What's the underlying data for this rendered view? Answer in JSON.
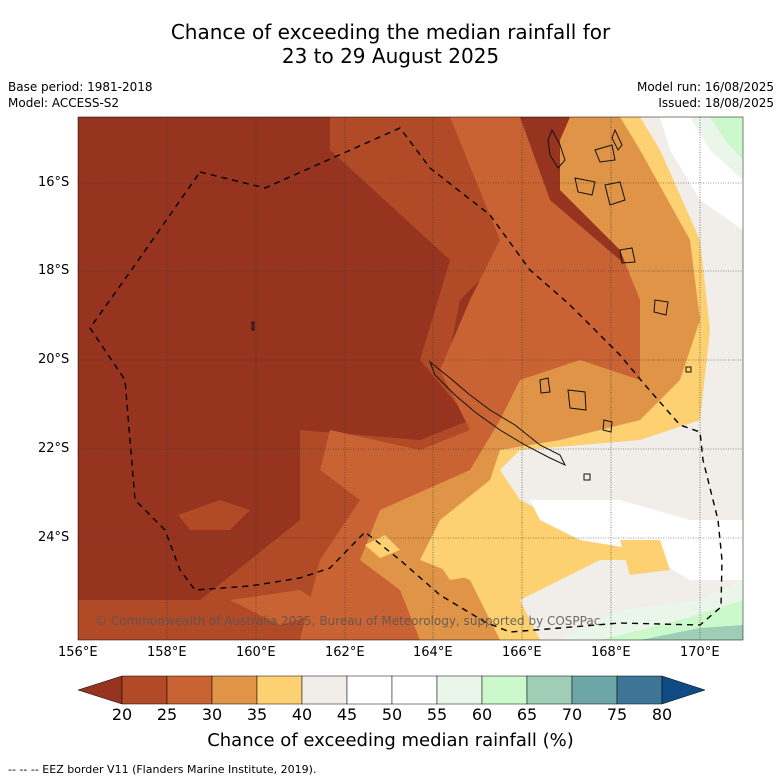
{
  "title_line1": "Chance of exceeding the median rainfall for",
  "title_line2": "23 to 29 August 2025",
  "base_period": "Base period: 1981-2018",
  "model": "Model: ACCESS-S2",
  "model_run": "Model run: 16/08/2025",
  "issued": "Issued: 18/08/2025",
  "copyright": "© Commonwealth of Australia 2025, Bureau of Meteorology, supported by COSPPac",
  "lat_labels": [
    "16°S",
    "18°S",
    "20°S",
    "22°S",
    "24°S"
  ],
  "lon_labels": [
    "156°E",
    "158°E",
    "160°E",
    "162°E",
    "164°E",
    "166°E",
    "168°E",
    "170°E"
  ],
  "colorbar": {
    "ticks": [
      "20",
      "25",
      "30",
      "35",
      "40",
      "45",
      "50",
      "55",
      "60",
      "65",
      "70",
      "75",
      "80"
    ],
    "colors": [
      "#97341f",
      "#b14a26",
      "#c96333",
      "#e09447",
      "#fdd072",
      "#f1ede8",
      "#ffffff",
      "#ffffff",
      "#eaf6ea",
      "#ccf9cc",
      "#9ecfb6",
      "#6da6a6",
      "#3e7596",
      "#0e4b85"
    ],
    "title": "Chance of exceeding median rainfall (%)"
  },
  "footnote": "--  --  -- EEZ border V11 (Flanders Marine Institute, 2019)."
}
